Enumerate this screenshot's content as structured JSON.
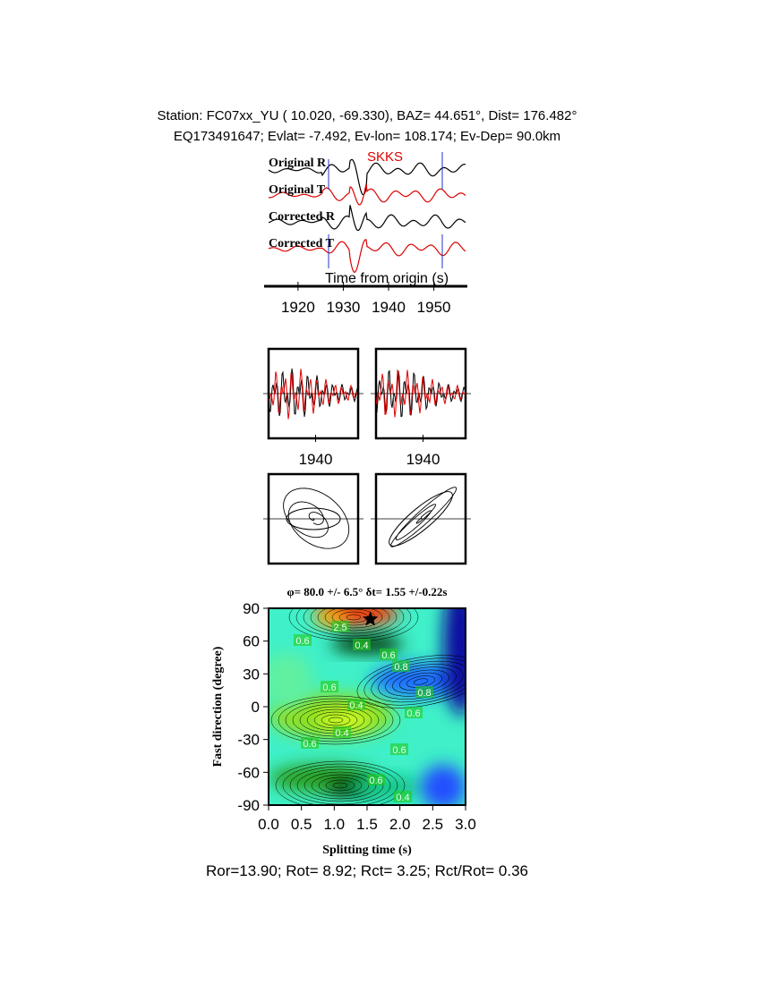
{
  "header": {
    "line1": "Station: FC07xx_YU (  10.020,  -69.330), BAZ=   44.651°, Dist=  176.482°",
    "line2": "EQ173491647; Evlat=  -7.492, Ev-lon= 108.174; Ev-Dep= 90.0km"
  },
  "traces": {
    "labels": [
      "Original R",
      "Original T",
      "Corrected R",
      "Corrected T"
    ],
    "phase": "SKKS",
    "xlabel": "Time from origin (s)",
    "xlim": [
      1913.5,
      1957
    ],
    "xticks": [
      1920,
      1930,
      1940,
      1950
    ]
  },
  "waveform_panels": [
    {
      "xlim": [
        1929.5,
        1949.5
      ],
      "xticks": [
        1940
      ]
    },
    {
      "xlim": [
        1929.5,
        1949.5
      ],
      "xticks": [
        1940
      ]
    }
  ],
  "grid_search": {
    "title": "φ= 80.0 +/- 6.5° δt= 1.55 +/-0.22s",
    "xlabel": "Splitting time (s)",
    "ylabel": "Fast direction (degree)",
    "xlim": [
      0,
      3
    ],
    "ylim": [
      -90,
      90
    ],
    "xticks": [
      {
        "value": 0,
        "label": "0.0"
      },
      0.5,
      {
        "value": 1,
        "label": "1.0"
      },
      1.5,
      {
        "value": 2,
        "label": "2.0"
      },
      2.5,
      {
        "value": 3,
        "label": "3.0"
      }
    ],
    "yticks": [
      90,
      60,
      30,
      0,
      -30,
      -60,
      -90
    ],
    "best": {
      "dt": 1.55,
      "phi": 80
    },
    "contour_labels": [
      "0.6",
      "2.5",
      "0.4",
      "0.6",
      "0.8",
      "0.8",
      "0.6",
      "0.4",
      "0.6",
      "0.4",
      "0.6",
      "0.6",
      "0.6",
      "0.4"
    ]
  },
  "footer": "Ror=13.90; Rot= 8.92; Rct= 3.25; Rct/Rot= 0.36"
}
